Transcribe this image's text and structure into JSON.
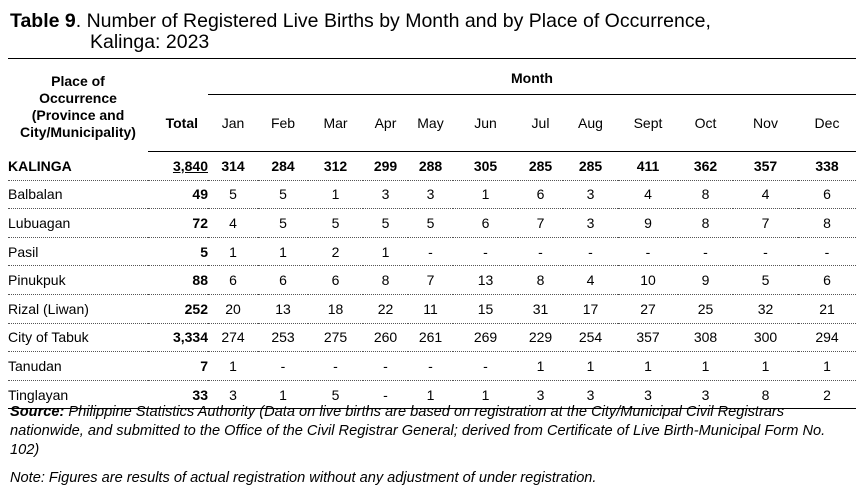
{
  "title": {
    "label": "Table 9",
    "text": ". Number of Registered Live Births by Month and by Place of Occurrence,",
    "line2": "Kalinga: 2023"
  },
  "header": {
    "place_line1": "Place of",
    "place_line2": "Occurrence",
    "place_line3": "(Province and",
    "place_line4": "City/Municipality)",
    "month": "Month",
    "total": "Total",
    "months": [
      "Jan",
      "Feb",
      "Mar",
      "Apr",
      "May",
      "Jun",
      "Jul",
      "Aug",
      "Sept",
      "Oct",
      "Nov",
      "Dec"
    ]
  },
  "rows": [
    {
      "name": "KALINGA",
      "total": "3,840",
      "values": [
        "314",
        "284",
        "312",
        "299",
        "288",
        "305",
        "285",
        "285",
        "411",
        "362",
        "357",
        "338"
      ]
    },
    {
      "name": "Balbalan",
      "total": "49",
      "values": [
        "5",
        "5",
        "1",
        "3",
        "3",
        "1",
        "6",
        "3",
        "4",
        "8",
        "4",
        "6"
      ]
    },
    {
      "name": "Lubuagan",
      "total": "72",
      "values": [
        "4",
        "5",
        "5",
        "5",
        "5",
        "6",
        "7",
        "3",
        "9",
        "8",
        "7",
        "8"
      ]
    },
    {
      "name": "Pasil",
      "total": "5",
      "values": [
        "1",
        "1",
        "2",
        "1",
        "-",
        "-",
        "-",
        "-",
        "-",
        "-",
        "-",
        "-"
      ]
    },
    {
      "name": "Pinukpuk",
      "total": "88",
      "values": [
        "6",
        "6",
        "6",
        "8",
        "7",
        "13",
        "8",
        "4",
        "10",
        "9",
        "5",
        "6"
      ]
    },
    {
      "name": "Rizal (Liwan)",
      "total": "252",
      "values": [
        "20",
        "13",
        "18",
        "22",
        "11",
        "15",
        "31",
        "17",
        "27",
        "25",
        "32",
        "21"
      ]
    },
    {
      "name": "City of Tabuk",
      "total": "3,334",
      "values": [
        "274",
        "253",
        "275",
        "260",
        "261",
        "269",
        "229",
        "254",
        "357",
        "308",
        "300",
        "294"
      ]
    },
    {
      "name": "Tanudan",
      "total": "7",
      "values": [
        "1",
        "-",
        "-",
        "-",
        "-",
        "-",
        "1",
        "1",
        "1",
        "1",
        "1",
        "1"
      ]
    },
    {
      "name": "Tinglayan",
      "total": "33",
      "values": [
        "3",
        "1",
        "5",
        "-",
        "1",
        "1",
        "3",
        "3",
        "3",
        "3",
        "8",
        "2"
      ]
    }
  ],
  "source": {
    "label": "Source:",
    "text": " Philippine Statistics Authority (Data on live births are based on registration at the City/Municipal Civil Registrars nationwide, and submitted to the Office of the Civil Registrar General; derived from Certificate of Live Birth-Municipal Form No. 102)"
  },
  "note": "Note: Figures are results of actual registration without any adjustment of under registration."
}
